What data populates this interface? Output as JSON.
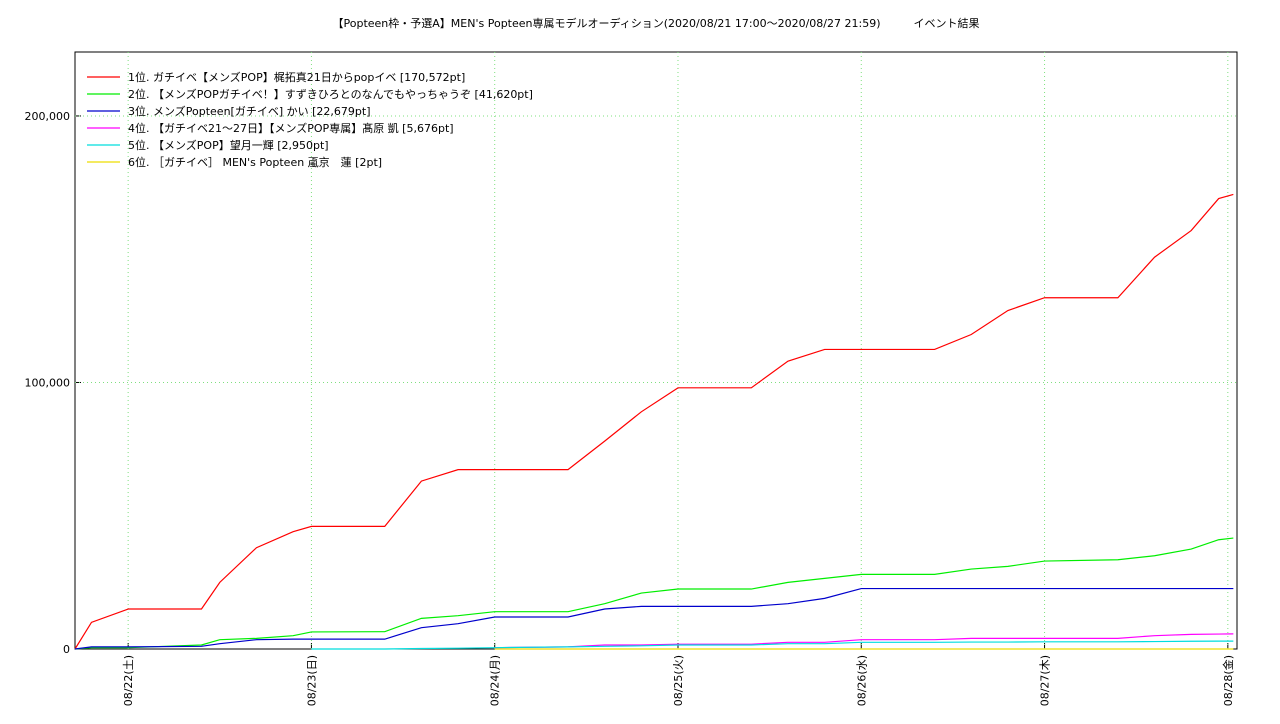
{
  "chart_data": {
    "type": "line",
    "title": "【Popteen枠・予選A】MEN's Popteen専属モデルオーディション(2020/08/21 17:00〜2020/08/27 21:59)　　　イベント結果",
    "x": [
      0.71,
      0.8,
      1.0,
      1.4,
      1.5,
      1.7,
      1.9,
      2.0,
      2.4,
      2.6,
      2.8,
      3.0,
      3.4,
      3.6,
      3.8,
      4.0,
      4.4,
      4.6,
      4.8,
      5.0,
      5.4,
      5.6,
      5.8,
      6.0,
      6.4,
      6.6,
      6.8,
      6.95,
      7.03
    ],
    "xlim": [
      0.71,
      7.05
    ],
    "xticks": [
      {
        "value": 1,
        "label": "08/22(土)"
      },
      {
        "value": 2,
        "label": "08/23(日)"
      },
      {
        "value": 3,
        "label": "08/24(月)"
      },
      {
        "value": 4,
        "label": "08/25(火)"
      },
      {
        "value": 5,
        "label": "08/26(水)"
      },
      {
        "value": 6,
        "label": "08/27(木)"
      },
      {
        "value": 7,
        "label": "08/28(金)"
      }
    ],
    "ylim": [
      0,
      224000
    ],
    "yticks": [
      0,
      {
        "value": 100000,
        "label": "100,000"
      },
      {
        "value": 200000,
        "label": "200,000"
      }
    ],
    "grid": true,
    "legend": "top-left",
    "series": [
      {
        "name": "1位. ガチイベ【メンズPOP】梶拓真21日からpopイベ [170,572pt]",
        "color": "#ff0000",
        "values": [
          0,
          10000,
          15000,
          15000,
          25000,
          38000,
          44000,
          46000,
          46000,
          63000,
          67300,
          67300,
          67300,
          78000,
          89000,
          98000,
          98000,
          108000,
          112400,
          112400,
          112400,
          118000,
          127000,
          131800,
          131800,
          147000,
          157000,
          169000,
          170572
        ]
      },
      {
        "name": "2位. 【メンズPOPガチイベ！】すずきひろとのなんでもやっちゃうぞ [41,620pt]",
        "color": "#00ee00",
        "values": [
          0,
          500,
          500,
          1500,
          3500,
          4000,
          5000,
          6400,
          6500,
          11500,
          12500,
          14000,
          14000,
          17000,
          21000,
          22500,
          22500,
          25000,
          26500,
          28000,
          28000,
          30000,
          31000,
          33000,
          33500,
          35000,
          37500,
          41000,
          41620
        ]
      },
      {
        "name": "3位. メンズPopteen[ガチイベ] かい [22,679pt]",
        "color": "#0000cc",
        "values": [
          0,
          800,
          800,
          1000,
          2000,
          3500,
          3700,
          3700,
          3700,
          8000,
          9500,
          12000,
          12000,
          15000,
          16000,
          16000,
          16000,
          17000,
          19000,
          22679,
          22679,
          22679,
          22679,
          22679,
          22679,
          22679,
          22679,
          22679,
          22679
        ]
      },
      {
        "name": "4位. 【ガチイベ21〜27日】【メンズPOP専属】髙原 凱 [5,676pt]",
        "color": "#ff00ff",
        "values": [
          null,
          null,
          null,
          null,
          null,
          null,
          null,
          null,
          null,
          null,
          null,
          500,
          800,
          1500,
          1500,
          1800,
          1800,
          2500,
          2500,
          3500,
          3500,
          4000,
          4000,
          4000,
          4000,
          5000,
          5500,
          5600,
          5676
        ]
      },
      {
        "name": "5位. 【メンズPOP】望月一輝 [2,950pt]",
        "color": "#00dddd",
        "values": [
          null,
          null,
          null,
          null,
          null,
          null,
          null,
          0,
          0,
          200,
          300,
          500,
          800,
          1000,
          1200,
          1500,
          1500,
          2000,
          2000,
          2500,
          2500,
          2600,
          2600,
          2700,
          2700,
          2800,
          2900,
          2950,
          2950
        ]
      },
      {
        "name": "6位. ［ガチイベ］ MEN's Popteen 颪京　蓮 [2pt]",
        "color": "#eedd00",
        "values": [
          null,
          null,
          null,
          null,
          null,
          null,
          null,
          null,
          null,
          null,
          null,
          0,
          0,
          0,
          0,
          0,
          0,
          0,
          0,
          0,
          0,
          0,
          0,
          0,
          0,
          0,
          0,
          2,
          2
        ]
      }
    ]
  }
}
